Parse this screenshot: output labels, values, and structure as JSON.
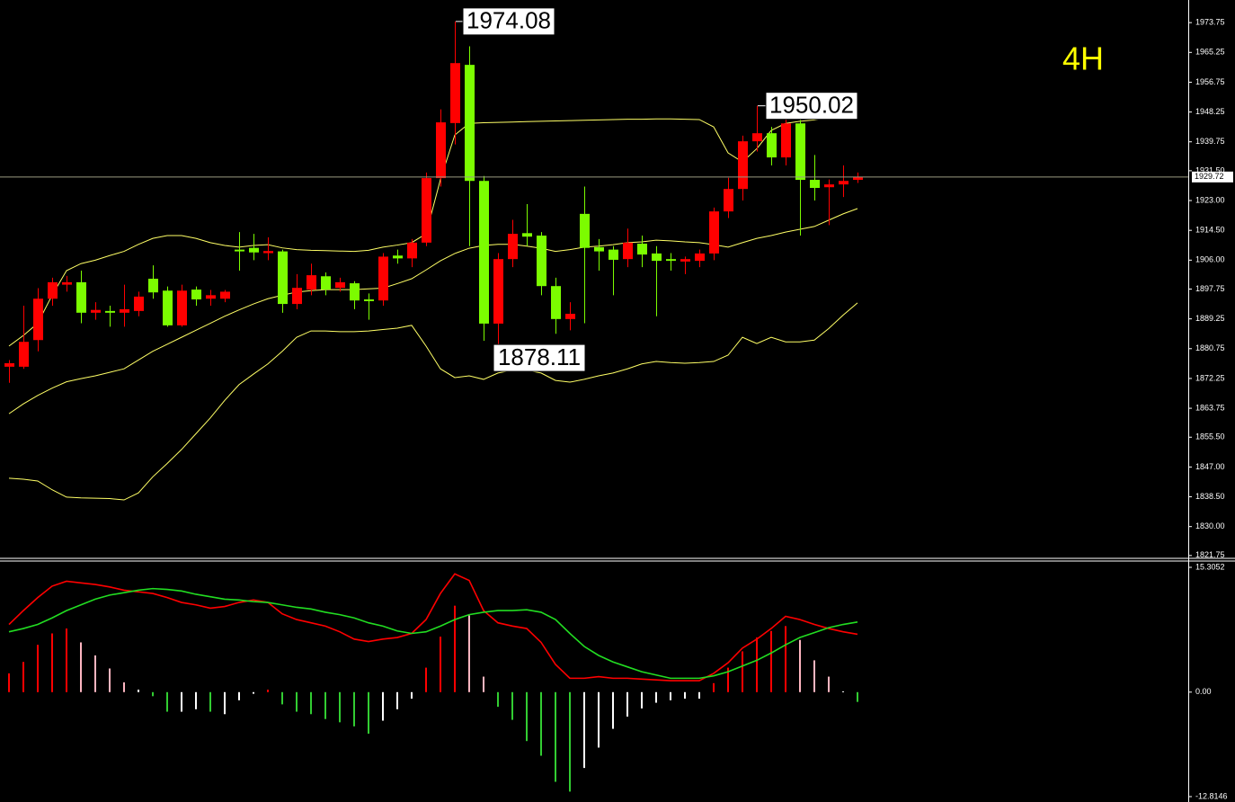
{
  "chart_data": [
    {
      "type": "candlestick",
      "timeframe": "4H",
      "open": [
        1875.6,
        1875.6,
        1883.2,
        1895,
        1899,
        1899.7,
        1891,
        1891.5,
        1891,
        1891.5,
        1900.7,
        1897.3,
        1887.4,
        1897.6,
        1895,
        1895,
        1909,
        1909.5,
        1908,
        1908.5,
        1893.5,
        1897.6,
        1901.4,
        1898.1,
        1899.4,
        1894.8,
        1894.5,
        1907.3,
        1906.5,
        1911,
        1929.4,
        1945.1,
        1961.7,
        1928.6,
        1887.9,
        1906.3,
        1913.7,
        1913,
        1898.6,
        1889.2,
        1919.2,
        1909.7,
        1909,
        1906.3,
        1910.7,
        1907.9,
        1906.3,
        1905.6,
        1905.8,
        1907.9,
        1919.9,
        1926.3,
        1939.9,
        1942.2,
        1935.3,
        1945,
        1928.9,
        1926.8,
        1927.6,
        1928.9
      ],
      "high": [
        1877.5,
        1893,
        1898,
        1901,
        1901.5,
        1903,
        1894,
        1893,
        1899,
        1897,
        1904.5,
        1898.5,
        1899,
        1898.5,
        1897.5,
        1897.5,
        1914,
        1913.5,
        1912.5,
        1909,
        1902,
        1905,
        1902.5,
        1901,
        1900,
        1896.5,
        1908,
        1909,
        1912,
        1931,
        1949,
        1974.08,
        1967,
        1930,
        1908,
        1917.5,
        1922,
        1914,
        1901,
        1894,
        1927,
        1912,
        1910,
        1915,
        1913,
        1910,
        1908,
        1907,
        1909,
        1921,
        1929.5,
        1941.5,
        1950.02,
        1944,
        1947,
        1946,
        1936,
        1929,
        1933,
        1931
      ],
      "low": [
        1871,
        1875,
        1880,
        1893,
        1897,
        1888,
        1889,
        1887,
        1887,
        1890,
        1895,
        1887,
        1887,
        1893,
        1893,
        1894,
        1903,
        1906,
        1906,
        1891,
        1892,
        1896,
        1896,
        1897,
        1892,
        1889,
        1893,
        1905,
        1904,
        1910,
        1927,
        1939,
        1910,
        1883,
        1878.11,
        1904,
        1910,
        1896,
        1885,
        1886,
        1888,
        1903,
        1896,
        1904,
        1904,
        1890,
        1903,
        1902,
        1904,
        1906,
        1918,
        1923,
        1937,
        1933,
        1933,
        1913,
        1923,
        1916,
        1924,
        1928
      ],
      "close": [
        1876.6,
        1882.7,
        1895,
        1899.7,
        1899.7,
        1891,
        1891.8,
        1891,
        1892,
        1895.6,
        1896.8,
        1887.4,
        1897.3,
        1894.8,
        1896,
        1897,
        1908.5,
        1908.2,
        1908.6,
        1893.5,
        1898.1,
        1901.7,
        1897.6,
        1899.7,
        1894.5,
        1894.3,
        1907,
        1906.5,
        1911,
        1929.4,
        1945.3,
        1962.2,
        1928.6,
        1887.9,
        1906.3,
        1913.5,
        1912.7,
        1898.6,
        1889.2,
        1890.7,
        1909.5,
        1908.5,
        1906.1,
        1911,
        1907.6,
        1905.8,
        1905.8,
        1906.3,
        1907.9,
        1919.9,
        1926.3,
        1939.9,
        1942.2,
        1935.3,
        1945,
        1928.9,
        1926.6,
        1927.6,
        1928.6,
        1929.72
      ],
      "up_color": "#ff0000",
      "down_color": "#7cfc00",
      "bands": [
        {
          "color": "#ffff66",
          "values": [
            1881.5,
            1884.5,
            1888,
            1896,
            1903,
            1905,
            1906,
            1907.3,
            1908.5,
            1910.5,
            1912.2,
            1913,
            1913,
            1912.2,
            1911,
            1910.2,
            1909.7,
            1910.2,
            1910.4,
            1909.5,
            1909,
            1908.8,
            1908.7,
            1908.6,
            1908.5,
            1908.8,
            1909.7,
            1910.3,
            1911,
            1913.5,
            1929,
            1941.7,
            1945,
            1945.2,
            1945.3,
            1945.4,
            1945.5,
            1945.6,
            1945.7,
            1945.8,
            1945.9,
            1946,
            1946.1,
            1946.2,
            1946.2,
            1946.3,
            1946.3,
            1946.2,
            1946.1,
            1944,
            1936.6,
            1934,
            1937.8,
            1943,
            1945,
            1945.6,
            1946,
            1946.8,
            1947.3,
            1947.6
          ]
        },
        {
          "color": "#ffff66",
          "values": [
            1862.2,
            1865,
            1867.4,
            1869.5,
            1871.3,
            1872.2,
            1873,
            1874,
            1875,
            1877.5,
            1880,
            1882,
            1884,
            1886,
            1888,
            1890,
            1891.8,
            1893.5,
            1895,
            1896,
            1896.9,
            1897.3,
            1897.6,
            1897.6,
            1897.6,
            1897.8,
            1898,
            1899.3,
            1900.7,
            1903.2,
            1905.8,
            1907.9,
            1909.4,
            1910.2,
            1910.5,
            1910.5,
            1910,
            1909.4,
            1908.5,
            1909,
            1909.7,
            1910,
            1910.4,
            1911,
            1911.2,
            1911.7,
            1911.5,
            1911.2,
            1911,
            1910.4,
            1909.7,
            1911,
            1912.2,
            1913,
            1914,
            1914.8,
            1915.6,
            1917.4,
            1919.2,
            1920.7
          ]
        },
        {
          "color": "#ffff66",
          "values": [
            1843.8,
            1843.5,
            1843,
            1840.5,
            1838.4,
            1838.2,
            1838.1,
            1838,
            1837.6,
            1839.6,
            1844.2,
            1848,
            1852,
            1856.5,
            1861,
            1866,
            1870.5,
            1873.5,
            1876.4,
            1880,
            1884,
            1885.8,
            1885.8,
            1885.6,
            1885.6,
            1885.8,
            1886.2,
            1886.6,
            1887.4,
            1881.5,
            1875,
            1872.5,
            1873,
            1872,
            1873.8,
            1874.6,
            1874.6,
            1873.8,
            1871.7,
            1871.2,
            1872,
            1873,
            1873.8,
            1875,
            1876.4,
            1877.1,
            1876.8,
            1876.6,
            1876.8,
            1877.1,
            1878.9,
            1884,
            1882.2,
            1884,
            1882.7,
            1882.7,
            1883.2,
            1886.5,
            1890.3,
            1893.8
          ]
        }
      ],
      "last_price": 1929.72,
      "annotations": [
        1974.08,
        1950.02,
        1878.11
      ],
      "ylim": [
        1821.2,
        1980.2
      ],
      "yticks": [
        1973.75,
        1965.25,
        1956.75,
        1948.25,
        1939.75,
        {
          "value": 1931.5,
          "label": "1931.50"
        },
        {
          "value": 1923,
          "label": "1923.00"
        },
        {
          "value": 1914.5,
          "label": "1914.50"
        },
        {
          "value": 1906,
          "label": "1906.00"
        },
        1897.75,
        1889.25,
        1880.75,
        1872.25,
        1863.75,
        {
          "value": 1855.5,
          "label": "1855.50"
        },
        {
          "value": 1847,
          "label": "1847.00"
        },
        {
          "value": 1838.5,
          "label": "1838.50"
        },
        {
          "value": 1830,
          "label": "1830.00"
        },
        1821.75
      ]
    },
    {
      "type": "macd",
      "histogram": [
        2.3,
        3.7,
        5.8,
        7.2,
        7.8,
        6.1,
        4.5,
        2.9,
        1.2,
        0.3,
        -0.5,
        -2.4,
        -2.4,
        -2.1,
        -2.4,
        -2.7,
        -1,
        -0.2,
        0.3,
        -1.5,
        -2.4,
        -2.7,
        -3.3,
        -3.7,
        -4.2,
        -5.1,
        -3.5,
        -2.1,
        -0.8,
        3,
        6.8,
        10.6,
        9.4,
        1.9,
        -1.8,
        -3.4,
        -6,
        -7.8,
        -11,
        -12.2,
        -9.3,
        -6.8,
        -4.5,
        -3,
        -2,
        -1.3,
        -1,
        -0.8,
        -0.8,
        1.1,
        3,
        5,
        6.7,
        7.5,
        8.1,
        6.4,
        3.9,
        1.9,
        0.1,
        -1.2
      ],
      "bar_colors": [
        "#ff0000",
        "#ff0000",
        "#ff0000",
        "#ff0000",
        "#ff0000",
        "#ffb6c1",
        "#ffb6c1",
        "#ffb6c1",
        "#ffb6c1",
        "#ffffff",
        "#32cd32",
        "#32cd32",
        "#ffffff",
        "#ffffff",
        "#32cd32",
        "#ffffff",
        "#ffffff",
        "#ffffff",
        "#ff0000",
        "#32cd32",
        "#32cd32",
        "#32cd32",
        "#32cd32",
        "#32cd32",
        "#32cd32",
        "#32cd32",
        "#ffffff",
        "#ffffff",
        "#ffffff",
        "#ff0000",
        "#ff0000",
        "#ff0000",
        "#ffb6c1",
        "#ffb6c1",
        "#32cd32",
        "#32cd32",
        "#32cd32",
        "#32cd32",
        "#32cd32",
        "#32cd32",
        "#ffffff",
        "#ffffff",
        "#ffffff",
        "#ffffff",
        "#ffffff",
        "#ffffff",
        "#ffffff",
        "#ffffff",
        "#ffffff",
        "#ff0000",
        "#ff0000",
        "#ff0000",
        "#ff0000",
        "#ff0000",
        "#ff0000",
        "#ffb6c1",
        "#ffb6c1",
        "#ffb6c1",
        "#ffffff",
        "#32cd32"
      ],
      "series": [
        {
          "color": "#ff0000",
          "values": [
            8.3,
            10.0,
            11.6,
            13.0,
            13.6,
            13.4,
            13.2,
            12.9,
            12.5,
            12.3,
            12.1,
            11.6,
            11.0,
            10.7,
            10.3,
            10.5,
            11.0,
            11.3,
            11.0,
            9.6,
            8.9,
            8.5,
            8.1,
            7.4,
            6.5,
            6.2,
            6.5,
            6.7,
            7.2,
            8.9,
            12.1,
            14.5,
            13.7,
            10.0,
            8.5,
            8.1,
            7.8,
            6.1,
            3.4,
            1.7,
            1.7,
            1.9,
            1.7,
            1.7,
            1.6,
            1.5,
            1.4,
            1.4,
            1.4,
            2.3,
            3.6,
            5.4,
            6.5,
            7.8,
            9.3,
            8.9,
            8.3,
            7.8,
            7.4,
            7.1
          ]
        },
        {
          "color": "#22dd22",
          "values": [
            7.4,
            7.8,
            8.3,
            9.1,
            10.0,
            10.7,
            11.4,
            11.9,
            12.2,
            12.5,
            12.7,
            12.6,
            12.4,
            12.0,
            11.7,
            11.4,
            11.3,
            11.1,
            11.0,
            10.7,
            10.4,
            10.2,
            9.8,
            9.5,
            9.1,
            8.5,
            8.1,
            7.5,
            7.2,
            7.4,
            8.1,
            8.9,
            9.5,
            9.8,
            10.0,
            10.0,
            10.1,
            9.8,
            8.9,
            7.2,
            5.6,
            4.5,
            3.7,
            3.1,
            2.5,
            2.1,
            1.7,
            1.7,
            1.7,
            2.0,
            2.5,
            3.2,
            3.9,
            4.8,
            5.8,
            6.7,
            7.3,
            7.9,
            8.3,
            8.6
          ]
        }
      ],
      "ylim": [
        -12.8146,
        15.3052
      ],
      "yticks": [
        15.3052,
        {
          "value": 0,
          "label": "0.00"
        },
        -12.8146
      ]
    }
  ]
}
